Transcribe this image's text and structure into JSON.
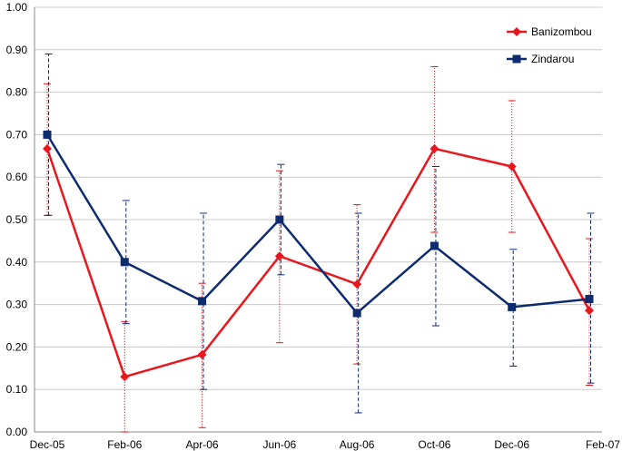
{
  "chart_data": {
    "type": "line",
    "categories": [
      "Dec-05",
      "Feb-06",
      "Apr-06",
      "Jun-06",
      "Aug-06",
      "Oct-06",
      "Dec-06",
      "Feb-07"
    ],
    "ylim": [
      0,
      1
    ],
    "yticks": [
      "0.00",
      "0.10",
      "0.20",
      "0.30",
      "0.40",
      "0.50",
      "0.60",
      "0.70",
      "0.80",
      "0.90",
      "1.00"
    ],
    "grid": true,
    "legend_position": "top-right",
    "series": [
      {
        "name": "Banizombou",
        "color": "#e8161d",
        "marker": "diamond",
        "error_style": "dotted",
        "values": [
          0.667,
          0.13,
          0.182,
          0.414,
          0.348,
          0.667,
          0.625,
          0.286
        ],
        "error_low": [
          0.51,
          0.0,
          0.01,
          0.21,
          0.16,
          0.47,
          0.47,
          0.11
        ],
        "error_high": [
          0.82,
          0.26,
          0.35,
          0.615,
          0.535,
          0.86,
          0.78,
          0.455
        ]
      },
      {
        "name": "Zindarou",
        "color": "#0d2b6e",
        "marker": "square",
        "error_style": "dashed",
        "values": [
          0.7,
          0.4,
          0.308,
          0.5,
          0.28,
          0.438,
          0.294,
          0.313
        ],
        "error_low": [
          0.51,
          0.255,
          0.1,
          0.37,
          0.045,
          0.25,
          0.155,
          0.115
        ],
        "error_high": [
          0.89,
          0.545,
          0.515,
          0.63,
          0.515,
          0.625,
          0.43,
          0.515
        ]
      }
    ]
  }
}
